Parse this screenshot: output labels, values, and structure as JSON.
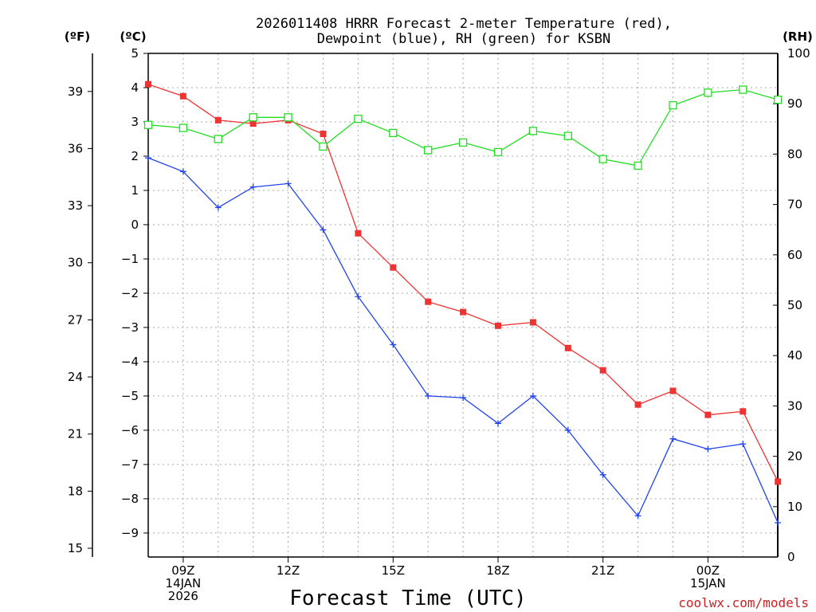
{
  "chart_data": {
    "type": "line",
    "title": "2026011408 HRRR Forecast 2-meter Temperature (red),",
    "subtitle": "Dewpoint (blue), RH (green) for KSBN",
    "xlabel": "Forecast Time (UTC)",
    "credit": "coolwx.com/models",
    "left_unit_f": "(ºF)",
    "left_unit_c": "(ºC)",
    "right_unit": "(RH)",
    "x": [
      8,
      9,
      10,
      11,
      12,
      13,
      14,
      15,
      16,
      17,
      18,
      19,
      20,
      21,
      22,
      23,
      24,
      25,
      26
    ],
    "x_ticks": [
      {
        "x": 9,
        "line1": "09Z",
        "line2": "14JAN",
        "line3": "2026"
      },
      {
        "x": 12,
        "line1": "12Z",
        "line2": "",
        "line3": ""
      },
      {
        "x": 15,
        "line1": "15Z",
        "line2": "",
        "line3": ""
      },
      {
        "x": 18,
        "line1": "18Z",
        "line2": "",
        "line3": ""
      },
      {
        "x": 21,
        "line1": "21Z",
        "line2": "",
        "line3": ""
      },
      {
        "x": 24,
        "line1": "00Z",
        "line2": "15JAN",
        "line3": ""
      }
    ],
    "y_celsius": {
      "min": -9.7,
      "max": 5.0,
      "ticks": [
        5,
        4,
        3,
        2,
        1,
        0,
        -1,
        -2,
        -3,
        -4,
        -5,
        -6,
        -7,
        -8,
        -9
      ],
      "tick_labels": [
        "5",
        "4",
        "3",
        "2",
        "1",
        "0",
        "−1",
        "−2",
        "−3",
        "−4",
        "−5",
        "−6",
        "−7",
        "−8",
        "−9"
      ]
    },
    "y_fahrenheit": {
      "ticks": [
        39,
        36,
        33,
        30,
        27,
        24,
        21,
        18,
        15
      ],
      "tick_labels": [
        "39",
        "36",
        "33",
        "30",
        "27",
        "24",
        "21",
        "18",
        "15"
      ]
    },
    "y_rh": {
      "min": 0,
      "max": 100,
      "ticks": [
        100,
        90,
        80,
        70,
        60,
        50,
        40,
        30,
        20,
        10,
        0
      ],
      "tick_labels": [
        "100",
        "90",
        "80",
        "70",
        "60",
        "50",
        "40",
        "30",
        "20",
        "10",
        "0"
      ]
    },
    "grid": true,
    "series": [
      {
        "name": "Temperature",
        "axis": "celsius",
        "color": "#ee3333",
        "marker": "filled-square",
        "values": [
          4.1,
          3.75,
          3.05,
          2.95,
          3.05,
          2.65,
          -0.25,
          -1.25,
          -2.25,
          -2.55,
          -2.95,
          -2.85,
          -3.6,
          -4.25,
          -5.25,
          -4.85,
          -5.55,
          -5.45,
          -7.5
        ]
      },
      {
        "name": "Dewpoint",
        "axis": "celsius",
        "color": "#2244ee",
        "marker": "plus",
        "values": [
          1.95,
          1.55,
          0.5,
          1.1,
          1.2,
          -0.15,
          -2.1,
          -3.5,
          -5.0,
          -5.05,
          -5.8,
          -5.0,
          -6.0,
          -7.3,
          -8.5,
          -6.25,
          -6.55,
          -6.4,
          -8.7
        ]
      },
      {
        "name": "RH",
        "axis": "rh",
        "color": "#22dd22",
        "marker": "open-square",
        "values": [
          85.8,
          85.2,
          83.0,
          87.3,
          87.3,
          81.5,
          87.0,
          84.2,
          80.8,
          82.3,
          80.4,
          84.6,
          83.6,
          79.0,
          77.7,
          89.7,
          92.2,
          92.8,
          90.8
        ]
      }
    ]
  }
}
